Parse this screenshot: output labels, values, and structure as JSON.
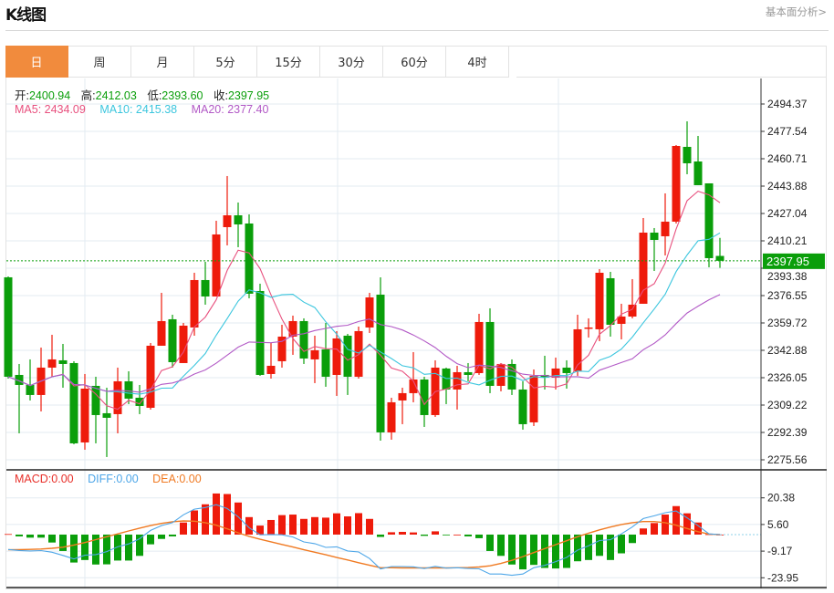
{
  "header": {
    "title": "K线图",
    "link": "基本面分析>"
  },
  "tabs": [
    {
      "label": "日",
      "active": true
    },
    {
      "label": "周"
    },
    {
      "label": "月"
    },
    {
      "label": "5分"
    },
    {
      "label": "15分"
    },
    {
      "label": "30分"
    },
    {
      "label": "60分"
    },
    {
      "label": "4时"
    }
  ],
  "ohlc_legend": {
    "open_label": "开:",
    "open": "2400.94",
    "high_label": "高:",
    "high": "2412.03",
    "low_label": "低:",
    "low": "2393.60",
    "close_label": "收:",
    "close": "2397.95"
  },
  "ma_legend": {
    "ma5": "MA5: 2434.09",
    "ma10": "MA10: 2415.38",
    "ma20": "MA20: 2377.40"
  },
  "macd_legend": {
    "macd": "MACD:0.00",
    "diff": "DIFF:0.00",
    "dea": "DEA:0.00"
  },
  "colors": {
    "up": "#EE1B0B",
    "down": "#0A9E0A",
    "ma5": "#E8507E",
    "ma10": "#3CC6DE",
    "ma20": "#B259C6",
    "diff": "#4DA6E8",
    "dea": "#F07A22",
    "accent": "#F18B3D"
  },
  "chart_data": [
    {
      "type": "candlestick",
      "y_ticks": [
        "2494.37",
        "2477.54",
        "2460.71",
        "2443.88",
        "2427.04",
        "2410.21",
        "2393.38",
        "2376.55",
        "2359.72",
        "2342.88",
        "2326.05",
        "2309.22",
        "2292.39",
        "2275.56"
      ],
      "ylim": [
        2275.56,
        2494.37
      ],
      "last_price": "2397.95",
      "grid": true,
      "ohlc": [
        [
          2387.79,
          2388.35,
          2325.51,
          2326.64
        ],
        [
          2327.76,
          2334.49,
          2291.85,
          2321.59
        ],
        [
          2321.59,
          2337.3,
          2312.05,
          2315.42
        ],
        [
          2315.42,
          2344.59,
          2305.32,
          2332.25
        ],
        [
          2332.25,
          2352.44,
          2326.64,
          2337.3
        ],
        [
          2336.73,
          2346.83,
          2319.9,
          2334.49
        ],
        [
          2335.05,
          2336.17,
          2285.12,
          2285.68
        ],
        [
          2286.24,
          2328.32,
          2281.76,
          2319.34
        ],
        [
          2321.03,
          2326.64,
          2285.68,
          2303.07
        ],
        [
          2304.2,
          2319.9,
          2277.27,
          2301.39
        ],
        [
          2303.64,
          2332.25,
          2291.85,
          2323.83
        ],
        [
          2323.83,
          2330.0,
          2309.81,
          2313.17
        ],
        [
          2313.73,
          2321.59,
          2303.64,
          2308.68
        ],
        [
          2307.56,
          2347.39,
          2306.44,
          2345.71
        ],
        [
          2345.71,
          2378.25,
          2345.71,
          2360.86
        ],
        [
          2361.98,
          2364.78,
          2332.25,
          2335.61
        ],
        [
          2335.05,
          2359.74,
          2335.05,
          2358.05
        ],
        [
          2356.93,
          2390.59,
          2351.88,
          2386.1
        ],
        [
          2386.1,
          2397.32,
          2370.96,
          2376.0
        ],
        [
          2376.0,
          2422.57,
          2376.0,
          2414.15
        ],
        [
          2418.64,
          2450.06,
          2407.42,
          2425.93
        ],
        [
          2425.93,
          2433.79,
          2406.3,
          2420.32
        ],
        [
          2420.88,
          2426.49,
          2374.88,
          2377.69
        ],
        [
          2379.37,
          2383.86,
          2327.2,
          2327.76
        ],
        [
          2328.32,
          2347.39,
          2325.51,
          2333.37
        ],
        [
          2336.17,
          2358.61,
          2332.25,
          2351.32
        ],
        [
          2351.32,
          2364.22,
          2340.1,
          2360.86
        ],
        [
          2360.86,
          2362.54,
          2334.49,
          2337.86
        ],
        [
          2337.3,
          2351.88,
          2322.71,
          2342.91
        ],
        [
          2343.47,
          2359.74,
          2320.47,
          2326.64
        ],
        [
          2327.76,
          2354.69,
          2314.86,
          2350.2
        ],
        [
          2351.88,
          2353.0,
          2315.42,
          2326.64
        ],
        [
          2326.64,
          2357.49,
          2325.51,
          2354.69
        ],
        [
          2356.93,
          2378.25,
          2353.56,
          2375.44
        ],
        [
          2377.13,
          2387.79,
          2287.37,
          2292.42
        ],
        [
          2292.42,
          2313.73,
          2287.93,
          2310.93
        ],
        [
          2312.05,
          2319.9,
          2297.46,
          2316.54
        ],
        [
          2316.54,
          2341.78,
          2310.93,
          2324.95
        ],
        [
          2324.95,
          2326.64,
          2295.78,
          2303.07
        ],
        [
          2303.07,
          2336.73,
          2301.95,
          2332.25
        ],
        [
          2331.69,
          2332.25,
          2309.81,
          2318.78
        ],
        [
          2318.78,
          2333.37,
          2306.44,
          2329.44
        ],
        [
          2329.44,
          2335.05,
          2323.83,
          2327.76
        ],
        [
          2328.88,
          2365.35,
          2327.76,
          2360.3
        ],
        [
          2360.3,
          2368.71,
          2316.54,
          2321.03
        ],
        [
          2321.03,
          2335.05,
          2317.66,
          2334.49
        ],
        [
          2334.49,
          2337.3,
          2315.42,
          2318.78
        ],
        [
          2318.78,
          2323.83,
          2294.1,
          2297.46
        ],
        [
          2298.59,
          2331.12,
          2296.34,
          2327.2
        ],
        [
          2327.76,
          2339.54,
          2318.78,
          2326.08
        ],
        [
          2326.08,
          2338.42,
          2318.78,
          2331.69
        ],
        [
          2332.25,
          2336.73,
          2319.34,
          2328.88
        ],
        [
          2330.0,
          2364.78,
          2327.2,
          2355.81
        ],
        [
          2356.37,
          2362.54,
          2350.76,
          2356.93
        ],
        [
          2355.81,
          2392.83,
          2348.52,
          2390.59
        ],
        [
          2387.22,
          2391.15,
          2351.32,
          2358.61
        ],
        [
          2359.17,
          2371.52,
          2349.64,
          2363.66
        ],
        [
          2363.66,
          2386.66,
          2362.54,
          2370.96
        ],
        [
          2371.52,
          2424.25,
          2371.52,
          2415.27
        ],
        [
          2415.27,
          2418.08,
          2391.71,
          2410.79
        ],
        [
          2413.03,
          2439.4,
          2401.25,
          2422.01
        ],
        [
          2422.01,
          2469.13,
          2420.88,
          2468.57
        ],
        [
          2468.01,
          2483.72,
          2451.18,
          2457.91
        ],
        [
          2459.03,
          2474.74,
          2444.45,
          2444.45
        ],
        [
          2445.57,
          2445.57,
          2393.96,
          2399.57
        ],
        [
          2400.94,
          2412.03,
          2393.6,
          2397.95
        ]
      ]
    },
    {
      "type": "bar",
      "y_ticks": [
        "20.38",
        "5.60",
        "-9.17",
        "-23.95"
      ],
      "ylim": [
        -23.95,
        20.38
      ],
      "macd": [
        0.3,
        -1.0,
        -1.7,
        -1.7,
        -4.4,
        -9.1,
        -15.5,
        -14.1,
        -16.6,
        -16.5,
        -14.4,
        -14.4,
        -11.8,
        -5.4,
        -2.4,
        -1.0,
        6.7,
        13.4,
        16.8,
        22.8,
        22.5,
        17.8,
        9.7,
        5.0,
        8.1,
        10.8,
        11.1,
        8.7,
        9.7,
        9.4,
        11.8,
        10.1,
        11.9,
        8.7,
        -1.3,
        1.3,
        1.5,
        1.2,
        -0.7,
        1.8,
        -0.2,
        0,
        -1.0,
        -2.0,
        -9.1,
        -11.8,
        -16.6,
        -19.3,
        -16.8,
        -18.5,
        -18.8,
        -18.5,
        -14.8,
        -14.1,
        -11.8,
        -14.1,
        -10.4,
        -4.7,
        3.4,
        6.4,
        11.1,
        15.8,
        11.8,
        6.7,
        0.2,
        0
      ],
      "diff": [
        -8.25,
        -8.8,
        -9.05,
        -8.85,
        -9.8,
        -11.55,
        -13.55,
        -11.45,
        -11.1,
        -9.45,
        -6.8,
        -5.2,
        -2.3,
        2.3,
        5.0,
        6.6,
        10.95,
        14.1,
        15.0,
        16.6,
        14.45,
        9.9,
        3.85,
        -0.1,
        0.05,
        -0.1,
        -1.35,
        -4.05,
        -5.0,
        -7.1,
        -6.8,
        -9.05,
        -9.65,
        -13.25,
        -19.05,
        -17.75,
        -17.75,
        -17.9,
        -18.85,
        -17.6,
        -18.6,
        -18.4,
        -18.8,
        -19.0,
        -21.85,
        -21.9,
        -22.6,
        -21.85,
        -18.4,
        -17.05,
        -15.0,
        -12.65,
        -8.6,
        -6.25,
        -3.3,
        -2.85,
        0.4,
        4.25,
        8.9,
        10.4,
        12.15,
        13.1,
        9.3,
        4.95,
        0.4,
        0
      ],
      "dea": [
        -8.4,
        -8.3,
        -8.2,
        -8.0,
        -7.6,
        -7.0,
        -5.8,
        -4.4,
        -2.8,
        -1.2,
        0.4,
        2.0,
        3.6,
        5.0,
        6.2,
        7.1,
        7.6,
        7.4,
        6.6,
        5.2,
        3.2,
        1.0,
        -1.0,
        -2.6,
        -4.0,
        -5.5,
        -6.9,
        -8.4,
        -9.8,
        -11.2,
        -12.7,
        -14.1,
        -15.6,
        -17.0,
        -18.4,
        -18.4,
        -18.5,
        -18.5,
        -18.5,
        -18.5,
        -18.5,
        -18.4,
        -18.3,
        -18.0,
        -17.3,
        -16.0,
        -14.3,
        -12.2,
        -10.0,
        -7.8,
        -5.6,
        -3.4,
        -1.2,
        0.8,
        2.6,
        4.2,
        5.6,
        6.6,
        7.2,
        7.2,
        6.6,
        5.2,
        3.4,
        1.6,
        0.3,
        0.0
      ]
    }
  ]
}
